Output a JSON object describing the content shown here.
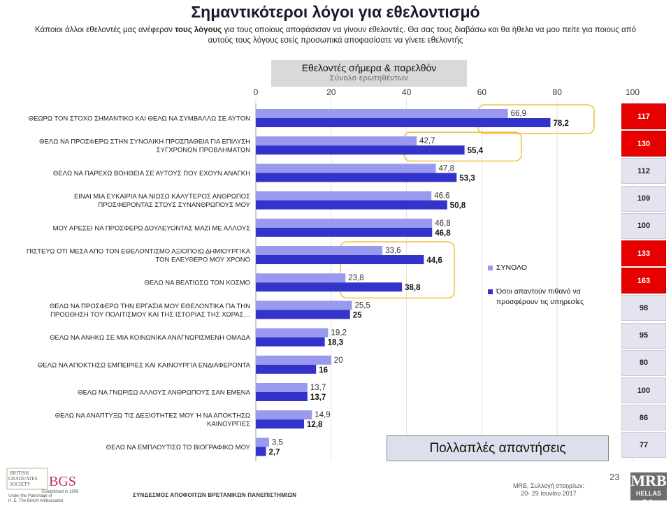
{
  "title": "Σημαντικότεροι λόγοι για εθελοντισμό",
  "subtitle": {
    "part1": "Κάποιοι άλλοι εθελοντές μας ανέφεραν ",
    "bold": "τους λόγους",
    "part2": " για τους οποίους αποφάσισαν να γίνουν εθελοντές. Θα σας τους διαβάσω και θα ήθελα να μου πείτε για ποιους από αυτούς τους λόγους εσείς προσωπικά αποφασίσατε να γίνετε εθελοντής"
  },
  "header": {
    "main": "Εθελοντές σήμερα & παρελθόν",
    "sub": "Σύνολο ερωτηθέντων"
  },
  "legend": {
    "items": [
      {
        "label": "ΣΥΝΟΛΟ",
        "color": "#9999ee"
      },
      {
        "label": "Όσοι απαντούν πιθανό να προσφέρουν τις υπηρεσίες",
        "color": "#3333cc"
      }
    ]
  },
  "chart_data": {
    "type": "bar",
    "orientation": "horizontal",
    "categories": [
      "ΘΕΩΡΩ ΤΟΝ ΣΤΟΧΟ ΣΗΜΑΝΤΙΚΟ ΚΑΙ ΘΕΛΩ ΝΑ ΣΥΜΒΑΛΛΩ ΣΕ ΑΥΤΟΝ",
      "ΘΕΛΩ ΝΑ ΠΡΟΣΦΕΡΩ ΣΤΗΝ ΣΥΝΟΛΙΚΗ ΠΡΟΣΠΑΘΕΙΑ ΓΙΑ ΕΠΙΛΥΣΗ ΣΥΓΧΡΟΝΩΝ ΠΡΟΒΛΗΜΑΤΩΝ",
      "ΘΕΛΩ ΝΑ ΠΑΡΕΧΩ ΒΟΗΘΕΙΑ ΣΕ ΑΥΤΟΥΣ ΠΟΥ ΕΧΟΥΝ ΑΝΑΓΚΗ",
      "ΕΙΝΑΙ ΜΙΑ ΕΥΚΑΙΡΙΑ ΝΑ ΝΙΩΣΩ ΚΑΛΥΤΕΡΟΣ ΑΝΘΡΩΠΟΣ ΠΡΟΣΦΕΡΟΝΤΑΣ ΣΤΟΥΣ ΣΥΝΑΝΘΡΩΠΟΥΣ ΜΟΥ",
      "ΜΟΥ ΑΡΕΣΕΙ ΝΑ ΠΡΟΣΦΕΡΩ ΔΟΥΛΕΥΟΝΤΑΣ ΜΑΖΙ ΜΕ ΑΛΛΟΥΣ",
      "ΠΙΣΤΕΥΩ ΟΤΙ ΜΕΣΑ ΑΠΟ ΤΟΝ ΕΘΕΛΟΝΤΙΣΜΟ ΑΞΙΟΠΟΙΩ ΔΗΜΙΟΥΡΓΙΚΑ ΤΟΝ ΕΛΕΥΘΕΡΟ ΜΟΥ ΧΡΟΝΟ",
      "ΘΕΛΩ ΝΑ ΒΕΛΤΙΩΣΩ ΤΟΝ ΚΟΣΜΟ",
      "ΘΕΛΩ ΝΑ ΠΡΟΣΦΕΡΩ ΤΗΝ ΕΡΓΑΣΙΑ ΜΟΥ ΕΘΕΛΟΝΤΙΚΑ ΓΙΑ ΤΗΝ ΠΡΟΩΘΗΣΗ ΤΟΥ ΠΟΛΙΤΙΣΜΟΥ ΚΑΙ ΤΗΣ ΙΣΤΟΡΙΑΣ ΤΗΣ ΧΩΡΑΣ…",
      "ΘΕΛΩ ΝΑ ΑΝΗΚΩ ΣΕ ΜΙΑ ΚΟΙΝΩΝΙΚΑ ΑΝΑΓΝΩΡΙΣΜΕΝΗ ΟΜΑΔΑ",
      "ΘΕΛΩ ΝΑ ΑΠΟΚΤΗΣΩ ΕΜΠΕΙΡΙΕΣ ΚΑΙ ΚΑΙΝΟΥΡΓΙΑ ΕΝΔΙΑΦΕΡΟΝΤΑ",
      "ΘΕΛΩ ΝΑ ΓΝΩΡΙΣΩ ΑΛΛΟΥΣ ΑΝΘΡΩΠΟΥΣ ΣΑΝ ΕΜΕΝΑ",
      "ΘΕΛΩ ΝΑ ΑΝΑΠΤΥΞΩ ΤΙΣ ΔΕΞΙΟΤΗΤΕΣ ΜΟΥ Ή ΝΑ ΑΠΟΚΤΗΣΩ ΚΑΙΝΟΥΡΓΙΕΣ",
      "ΘΕΛΩ ΝΑ ΕΜΠΛΟΥΤΙΣΩ ΤΟ ΒΙΟΓΡΑΦΙΚΟ ΜΟΥ"
    ],
    "series": [
      {
        "name": "ΣΥΝΟΛΟ",
        "values": [
          66.9,
          42.7,
          47.8,
          46.6,
          46.8,
          33.6,
          23.8,
          25.5,
          19.2,
          20,
          13.7,
          14.9,
          3.5
        ]
      },
      {
        "name": "Όσοι απαντούν πιθανό να προσφέρουν τις υπηρεσίες",
        "values": [
          78.2,
          55.4,
          53.3,
          50.8,
          46.8,
          44.6,
          38.8,
          25,
          18.3,
          16,
          13.7,
          12.8,
          2.7
        ]
      }
    ],
    "value_labels": {
      "total": [
        "66,9",
        "42,7",
        "47,8",
        "46,6",
        "46,8",
        "33,6",
        "23,8",
        "25,5",
        "19,2",
        "20",
        "13,7",
        "14,9",
        "3,5"
      ],
      "likely": [
        "78,2",
        "55,4",
        "53,3",
        "50,8",
        "46,8",
        "44,6",
        "38,8",
        "25",
        "18,3",
        "16",
        "13,7",
        "12,8",
        "2,7"
      ]
    },
    "xlim": [
      0,
      100
    ],
    "ticks": [
      "0",
      "20",
      "40",
      "60",
      "80",
      "100"
    ],
    "highlighted_rows": [
      0,
      1,
      5,
      6
    ],
    "colors": {
      "total": "#9999ee",
      "likely": "#3333cc",
      "highlight_box": "#f0b429"
    }
  },
  "ratio_index": {
    "values": [
      "117",
      "130",
      "112",
      "109",
      "100",
      "133",
      "163",
      "98",
      "95",
      "80",
      "100",
      "86",
      "77"
    ],
    "high": [
      true,
      true,
      false,
      false,
      false,
      true,
      true,
      false,
      false,
      false,
      false,
      false,
      false
    ],
    "high_color": "#e60000"
  },
  "multi_label": "Πολλαπλές απαντήσεις",
  "footer": {
    "logo_lines": [
      "BRITISH",
      "GRADUATES",
      "SOCIETY",
      "BGS",
      "Established in 1958",
      "Under the Patronage of",
      "H. E. The British Ambassador"
    ],
    "association": "ΣΥΝΔΕΣΜΟΣ ΑΠΟΦΟΙΤΩΝ ΒΡΕΤΑΝΙΚΩΝ ΠΑΝΕΠΙΣΤΗΜΙΩΝ",
    "source_line1": "MRB, Συλλογή στοιχείων:",
    "source_line2": "20- 29 Ιουνίου 2017",
    "page": "23",
    "mrb": "MRB",
    "mrb_sub": "HELLAS S.A."
  }
}
